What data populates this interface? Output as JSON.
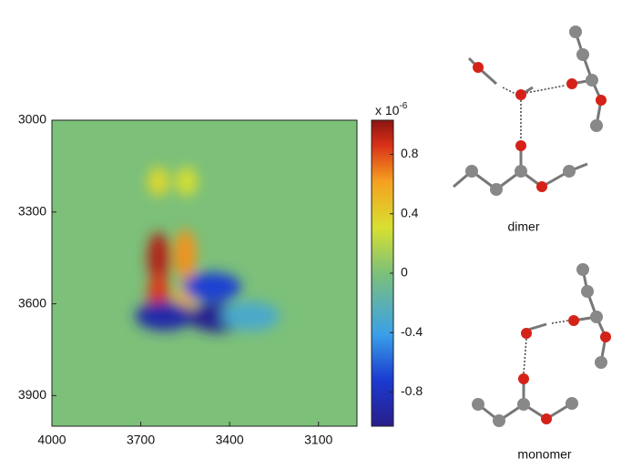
{
  "chart_data": {
    "type": "heatmap",
    "xlim": [
      4000,
      2970
    ],
    "xticks": [
      4000,
      3700,
      3400,
      3100
    ],
    "ylim": [
      3000,
      4000
    ],
    "yticks": [
      3000,
      3300,
      3600,
      3900
    ],
    "zlim": [
      -1.03,
      1.03
    ],
    "zticks": [
      0.8,
      0.4,
      0,
      -0.4,
      -0.8
    ],
    "colorbar_label": "x 10",
    "colorbar_exponent": "-6",
    "peaks": {
      "x": [
        3640,
        3640,
        3545,
        3550,
        3640,
        3550,
        3620,
        3440,
        3460,
        3330
      ],
      "y": [
        3200,
        3450,
        3200,
        3440,
        3580,
        3580,
        3640,
        3645,
        3545,
        3640
      ],
      "values": [
        0.35,
        0.95,
        0.3,
        0.65,
        0.85,
        0.5,
        -0.9,
        -1.0,
        -0.7,
        -0.3
      ]
    },
    "annotations": [
      "dimer",
      "monomer"
    ]
  }
}
